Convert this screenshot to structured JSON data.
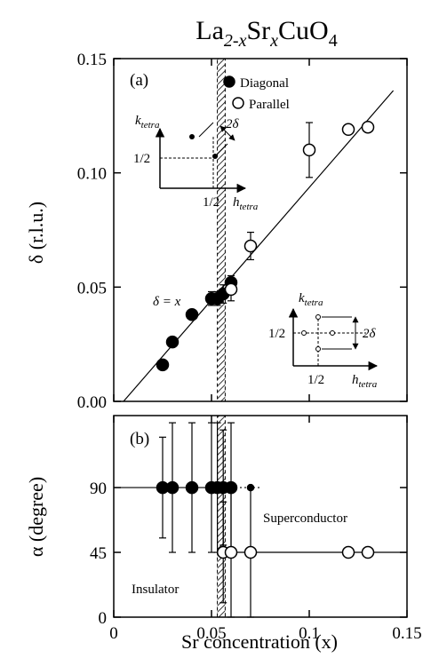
{
  "title_parts": [
    "La",
    "2-x",
    "Sr",
    "x",
    "CuO",
    "4"
  ],
  "x_label": "Sr concentration (x)",
  "chart_data": [
    {
      "type": "scatter",
      "panel": "(a)",
      "y_label": "δ (r.l.u.)",
      "xlim": [
        0,
        0.15
      ],
      "xticks": [
        0,
        0.05,
        0.1,
        0.15
      ],
      "ylim": [
        0,
        0.15
      ],
      "yticks": [
        {
          "value": 0,
          "label": "0.00"
        },
        {
          "value": 0.05,
          "label": "0.05"
        },
        {
          "value": 0.1,
          "label": "0.10"
        },
        {
          "value": 0.15,
          "label": "0.15"
        }
      ],
      "legend": "upper right",
      "series": [
        {
          "name": "Diagonal",
          "color": "#000000",
          "filled": true,
          "x": [
            0.025,
            0.03,
            0.04,
            0.05,
            0.053,
            0.056,
            0.06
          ],
          "values": [
            0.016,
            0.026,
            0.038,
            0.045,
            0.045,
            0.047,
            0.052
          ],
          "errors": [
            0,
            0,
            0.002,
            0.003,
            0.003,
            0.004,
            0.003
          ]
        },
        {
          "name": "Parallel",
          "color": "#000000",
          "filled": false,
          "x": [
            0.06,
            0.07,
            0.1,
            0.12,
            0.13
          ],
          "values": [
            0.049,
            0.068,
            0.11,
            0.119,
            0.12
          ],
          "errors": [
            0.005,
            0.006,
            0.012,
            0,
            0
          ]
        }
      ],
      "guides": [
        {
          "x": [
            0.005,
            0.143
          ],
          "y": [
            0,
            0.136
          ],
          "style": "solid"
        }
      ],
      "shaded_region": [
        0.053,
        0.057
      ],
      "annotations": [
        "δ = x"
      ],
      "insets": [
        {
          "k": "k",
          "k_sub": "tetra",
          "h": "h",
          "h_sub": "tetra",
          "half_k": "1/2",
          "half_h": "1/2",
          "split": "2δ"
        },
        {
          "k": "k",
          "k_sub": "tetra",
          "h": "h",
          "h_sub": "tetra",
          "half_k": "1/2",
          "half_h": "1/2",
          "split": "2δ"
        }
      ]
    },
    {
      "type": "scatter",
      "panel": "(b)",
      "y_label": "α (degree)",
      "xlim": [
        0,
        0.15
      ],
      "xticks": [
        0,
        0.05,
        0.1,
        0.15
      ],
      "ylim": [
        0,
        140
      ],
      "yticks": [
        0,
        45,
        90
      ],
      "series": [
        {
          "name": "Diagonal",
          "color": "#000000",
          "filled": true,
          "x": [
            0.025,
            0.03,
            0.04,
            0.05,
            0.053,
            0.056,
            0.06,
            0.07
          ],
          "values": [
            90,
            90,
            90,
            90,
            90,
            90,
            90,
            90
          ],
          "errors": [
            35,
            45,
            45,
            45,
            45,
            40,
            45,
            0
          ]
        },
        {
          "name": "Parallel",
          "color": "#000000",
          "filled": false,
          "x": [
            0.056,
            0.06,
            0.07,
            0.12,
            0.13
          ],
          "values": [
            45,
            45,
            45,
            45,
            45
          ],
          "errors": [
            35,
            45,
            45,
            0,
            0
          ]
        }
      ],
      "guides": [
        {
          "x": [
            0,
            0.06
          ],
          "y": [
            90,
            90
          ],
          "style": "solid"
        },
        {
          "x": [
            0.06,
            0.075
          ],
          "y": [
            90,
            90
          ],
          "style": "dotted"
        },
        {
          "x": [
            0.053,
            0.15
          ],
          "y": [
            45,
            45
          ],
          "style": "solid"
        }
      ],
      "shaded_region": [
        0.053,
        0.057
      ],
      "annotations": [
        "Superconductor",
        "Insulator"
      ]
    }
  ]
}
